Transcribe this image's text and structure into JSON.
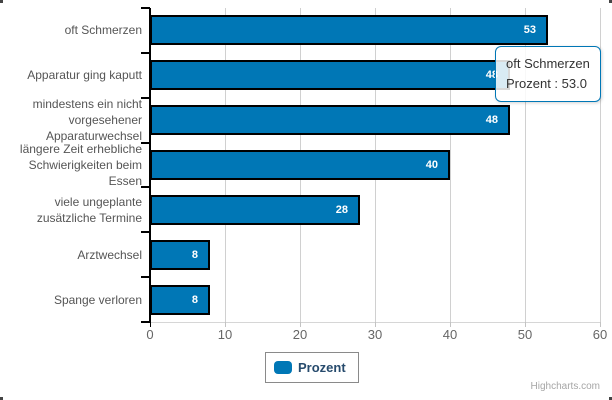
{
  "chart_data": {
    "type": "bar",
    "orientation": "horizontal",
    "title": "",
    "categories": [
      "oft Schmerzen",
      "Apparatur ging kaputt",
      "mindestens ein nicht\nvorgesehener\nApparaturwechsel",
      "längere Zeit erhebliche\nSchwierigkeiten beim\nEssen",
      "viele ungeplante\nzusätzliche Termine",
      "Arztwechsel",
      "Spange verloren"
    ],
    "series": [
      {
        "name": "Prozent",
        "values": [
          53,
          48,
          48,
          40,
          28,
          8,
          8
        ]
      }
    ],
    "xlim": [
      0,
      60
    ],
    "tick_interval": 10,
    "grid": true,
    "legend_position": "bottom-center",
    "bar_color": "#0077b6",
    "bar_border_color": "#000000",
    "data_label_color": "#ffffff",
    "category_label_color": "#555555",
    "tick_label_color": "#666666",
    "grid_color": "#d0d0d0"
  },
  "tooltip": {
    "category": "oft Schmerzen",
    "value_line": "Prozent : 53.0",
    "border_color": "#0077b6"
  },
  "legend": {
    "label": "Prozent",
    "symbol_color": "#0077b6",
    "text_color": "#274b6d"
  },
  "credits": {
    "label": "Highcharts.com"
  }
}
